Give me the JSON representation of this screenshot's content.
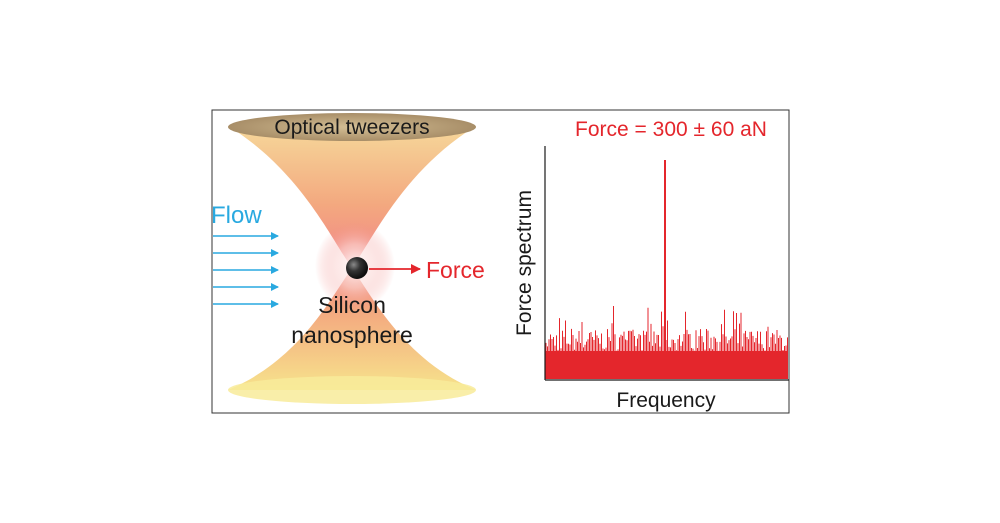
{
  "left_panel": {
    "tweezers_label": "Optical tweezers",
    "flow_label": "Flow",
    "force_label": "Force",
    "particle_label_line1": "Silicon",
    "particle_label_line2": "nanosphere"
  },
  "right_panel": {
    "title": "Force = 300 ± 60 aN",
    "ylabel": "Force spectrum",
    "xlabel": "Frequency"
  },
  "colors": {
    "flow": "#29a9e0",
    "force": "#e4262c",
    "spectrum": "#e4262c",
    "cone_rim": "#b8a07c",
    "text": "#1a1a1a",
    "frame": "#333333"
  },
  "icons": {
    "particle": "silicon-nanosphere-icon",
    "flow_arrows": "right-arrow-icon",
    "force_arrow": "right-arrow-icon"
  }
}
